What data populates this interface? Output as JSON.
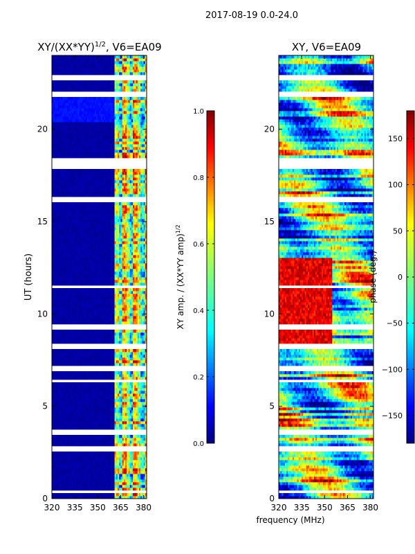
{
  "figure": {
    "suptitle": "2017-08-19 0.0-24.0",
    "shared_xlabel": "frequency (MHz)"
  },
  "chart_data": [
    {
      "type": "heatmap",
      "title": "XY/(XX*YY)",
      "title_superscript": "1/2",
      "title_suffix": ", V6=EA09",
      "xlabel": "",
      "ylabel": "UT (hours)",
      "xlim": [
        320,
        382
      ],
      "ylim": [
        0,
        24
      ],
      "xticks": [
        320,
        335,
        350,
        365,
        380
      ],
      "yticks": [
        0,
        5,
        10,
        15,
        20
      ],
      "colormap": "jet",
      "colorbar": {
        "label": "XY amp. / (XX*YY amp)",
        "label_superscript": "1/2",
        "range": [
          0.0,
          1.0
        ],
        "ticks": [
          "0.0",
          "0.2",
          "0.4",
          "0.6",
          "0.8",
          "1.0"
        ],
        "tick_values": [
          0.0,
          0.2,
          0.4,
          0.6,
          0.8,
          1.0
        ]
      },
      "data_gaps_hours": [
        0.3,
        2.6,
        3.55,
        6.3,
        6.95,
        8.2,
        9.2,
        11.4,
        16.1,
        17.9,
        18.2,
        21.8,
        22.7
      ],
      "active_band_mhz": [
        361,
        381
      ]
    },
    {
      "type": "heatmap",
      "title": "XY, V6=EA09",
      "xlabel": "",
      "ylabel": "",
      "xlim": [
        320,
        382
      ],
      "ylim": [
        0,
        24
      ],
      "xticks": [
        320,
        335,
        350,
        365,
        380
      ],
      "yticks": [
        0,
        5,
        10,
        15,
        20
      ],
      "colormap": "jet",
      "colorbar": {
        "label": "phase (deg.)",
        "range": [
          -180,
          180
        ],
        "ticks": [
          "150",
          "100",
          "50",
          "0",
          "−50",
          "−100",
          "−150"
        ],
        "tick_values": [
          150,
          100,
          50,
          0,
          -50,
          -100,
          -150
        ]
      },
      "data_gaps_hours": [
        0.3,
        2.6,
        3.55,
        6.3,
        6.95,
        8.2,
        9.2,
        11.4,
        16.1,
        17.9,
        18.2,
        21.8,
        22.7
      ]
    }
  ],
  "colors": {
    "jet": [
      "#00007f",
      "#0000ff",
      "#007fff",
      "#00ffff",
      "#7fff7f",
      "#ffff00",
      "#ff7f00",
      "#ff0000",
      "#7f0000"
    ],
    "background": "#ffffff",
    "axes": "#000000"
  }
}
